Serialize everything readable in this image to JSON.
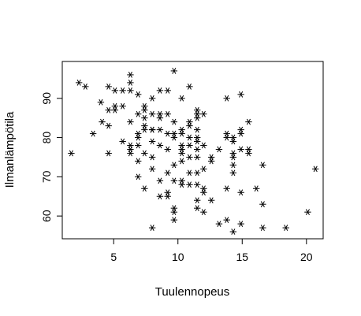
{
  "chart_data": {
    "type": "scatter",
    "title": "",
    "xlabel": "Tuulennopeus",
    "ylabel": "Ilmanlämpötila",
    "xlim": [
      1.0,
      21.3
    ],
    "ylim": [
      54.2,
      99.4
    ],
    "xticks": [
      5,
      10,
      15,
      20
    ],
    "yticks": [
      60,
      70,
      80,
      90
    ],
    "marker": "asterisk",
    "grid": false,
    "legend": "none",
    "colors": {
      "points": "#000000",
      "axes": "#000000",
      "background": "#ffffff"
    },
    "series": [
      {
        "points": [
          [
            1.7,
            76
          ],
          [
            2.3,
            94
          ],
          [
            2.8,
            93
          ],
          [
            3.4,
            81
          ],
          [
            4.0,
            89
          ],
          [
            4.1,
            84
          ],
          [
            4.6,
            76
          ],
          [
            4.6,
            83
          ],
          [
            4.6,
            87
          ],
          [
            4.6,
            93
          ],
          [
            5.1,
            87
          ],
          [
            5.1,
            92
          ],
          [
            5.1,
            88
          ],
          [
            5.7,
            88
          ],
          [
            5.7,
            92
          ],
          [
            5.7,
            79
          ],
          [
            6.3,
            96
          ],
          [
            6.3,
            94
          ],
          [
            6.3,
            92
          ],
          [
            6.3,
            78
          ],
          [
            6.3,
            77
          ],
          [
            6.3,
            76
          ],
          [
            6.3,
            84
          ],
          [
            6.9,
            91
          ],
          [
            6.9,
            81
          ],
          [
            6.9,
            80
          ],
          [
            6.9,
            78
          ],
          [
            6.9,
            74
          ],
          [
            6.9,
            70
          ],
          [
            6.9,
            86
          ],
          [
            7.4,
            87
          ],
          [
            7.4,
            85
          ],
          [
            7.4,
            83
          ],
          [
            7.4,
            82
          ],
          [
            7.4,
            76
          ],
          [
            7.4,
            67
          ],
          [
            7.4,
            88
          ],
          [
            8.0,
            90
          ],
          [
            8.0,
            86
          ],
          [
            8.0,
            82
          ],
          [
            8.0,
            79
          ],
          [
            8.0,
            75
          ],
          [
            8.0,
            72
          ],
          [
            8.0,
            57
          ],
          [
            8.0,
            82
          ],
          [
            8.6,
            92
          ],
          [
            8.6,
            86
          ],
          [
            8.6,
            85
          ],
          [
            8.6,
            82
          ],
          [
            8.6,
            78
          ],
          [
            8.6,
            69
          ],
          [
            8.6,
            65
          ],
          [
            9.2,
            92
          ],
          [
            9.2,
            86
          ],
          [
            9.2,
            81
          ],
          [
            9.2,
            77
          ],
          [
            9.2,
            71
          ],
          [
            9.2,
            66
          ],
          [
            9.2,
            65
          ],
          [
            9.7,
            97
          ],
          [
            9.7,
            84
          ],
          [
            9.7,
            81
          ],
          [
            9.7,
            80
          ],
          [
            9.7,
            73
          ],
          [
            9.7,
            69
          ],
          [
            9.7,
            62
          ],
          [
            9.7,
            59
          ],
          [
            9.7,
            61
          ],
          [
            10.3,
            90
          ],
          [
            10.3,
            82
          ],
          [
            10.3,
            78
          ],
          [
            10.3,
            77
          ],
          [
            10.3,
            76
          ],
          [
            10.3,
            74
          ],
          [
            10.3,
            69
          ],
          [
            10.3,
            68
          ],
          [
            10.3,
            81
          ],
          [
            10.9,
            93
          ],
          [
            10.9,
            84
          ],
          [
            10.9,
            83
          ],
          [
            10.9,
            80
          ],
          [
            10.9,
            78
          ],
          [
            10.9,
            75
          ],
          [
            10.9,
            71
          ],
          [
            10.9,
            68
          ],
          [
            11.5,
            87
          ],
          [
            11.5,
            86
          ],
          [
            11.5,
            82
          ],
          [
            11.5,
            80
          ],
          [
            11.5,
            79
          ],
          [
            11.5,
            77
          ],
          [
            11.5,
            75
          ],
          [
            11.5,
            71
          ],
          [
            11.5,
            68
          ],
          [
            11.5,
            64
          ],
          [
            11.5,
            62
          ],
          [
            11.5,
            85
          ],
          [
            12.0,
            86
          ],
          [
            12.0,
            78
          ],
          [
            12.0,
            72
          ],
          [
            12.0,
            67
          ],
          [
            12.0,
            66
          ],
          [
            12.0,
            61
          ],
          [
            12.6,
            75
          ],
          [
            12.6,
            74
          ],
          [
            12.6,
            64
          ],
          [
            13.2,
            77
          ],
          [
            13.2,
            58
          ],
          [
            13.8,
            90
          ],
          [
            13.8,
            81
          ],
          [
            13.8,
            80
          ],
          [
            13.8,
            67
          ],
          [
            13.8,
            59
          ],
          [
            14.3,
            80
          ],
          [
            14.3,
            79
          ],
          [
            14.3,
            76
          ],
          [
            14.3,
            75
          ],
          [
            14.3,
            73
          ],
          [
            14.3,
            71
          ],
          [
            14.3,
            56
          ],
          [
            14.9,
            91
          ],
          [
            14.9,
            82
          ],
          [
            14.9,
            81
          ],
          [
            14.9,
            77
          ],
          [
            14.9,
            66
          ],
          [
            14.9,
            58
          ],
          [
            15.5,
            84
          ],
          [
            15.5,
            77
          ],
          [
            15.5,
            76
          ],
          [
            16.1,
            67
          ],
          [
            16.6,
            73
          ],
          [
            16.6,
            63
          ],
          [
            16.6,
            57
          ],
          [
            18.4,
            57
          ],
          [
            20.1,
            61
          ],
          [
            20.7,
            72
          ]
        ]
      }
    ]
  }
}
